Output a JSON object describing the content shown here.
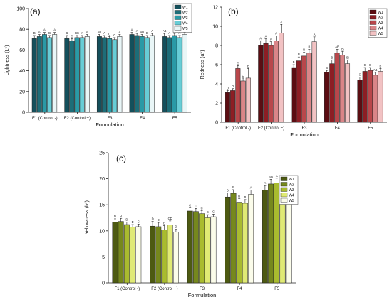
{
  "chart_data": [
    {
      "type": "bar",
      "panel_label": "(a)",
      "xlabel": "Formulation",
      "ylabel": "Lightness (L*)",
      "ylim": [
        0,
        100
      ],
      "yticks": [
        0,
        20,
        40,
        60,
        80,
        100
      ],
      "categories": [
        "F1 (Control -)",
        "F2 (Control +)",
        "F3",
        "F4",
        "F5"
      ],
      "legend_position": "top-right",
      "series": [
        {
          "name": "W1",
          "color": "#14505c",
          "values": [
            71,
            71,
            73,
            75,
            73
          ],
          "errors": [
            3,
            3,
            2,
            2,
            3
          ],
          "letters": [
            "B",
            "B",
            "AB",
            "A",
            "AB"
          ]
        },
        {
          "name": "W2",
          "color": "#1d6d78",
          "values": [
            73,
            69,
            72,
            74,
            72
          ],
          "errors": [
            2,
            2,
            2,
            2,
            2
          ],
          "letters": [
            "A",
            "C",
            "A",
            "A",
            "A"
          ]
        },
        {
          "name": "W3",
          "color": "#2a9aa6",
          "values": [
            75,
            72,
            71,
            73,
            74
          ],
          "errors": [
            2,
            2,
            2,
            2,
            2
          ],
          "letters": [
            "A",
            "BC",
            "C",
            "AB",
            "A"
          ]
        },
        {
          "name": "W4",
          "color": "#67cdd6",
          "values": [
            72,
            72,
            70,
            72,
            72
          ],
          "errors": [
            2,
            2,
            2,
            2,
            2
          ],
          "letters": [
            "B",
            "A",
            "C",
            "B",
            "A"
          ]
        },
        {
          "name": "W5",
          "color": "#e9f6f7",
          "values": [
            75,
            73,
            73,
            74,
            75
          ],
          "errors": [
            2,
            2,
            2,
            2,
            2
          ],
          "letters": [
            "A",
            "A",
            "A",
            "A",
            "A"
          ]
        }
      ]
    },
    {
      "type": "bar",
      "panel_label": "(b)",
      "xlabel": "Formulation",
      "ylabel": "Redness (a*)",
      "ylim": [
        0,
        12
      ],
      "yticks": [
        0,
        2,
        4,
        6,
        8,
        10,
        12
      ],
      "categories": [
        "F1 (Control -)",
        "F2 (Control +)",
        "F3",
        "F4",
        "F5"
      ],
      "legend_position": "top-right",
      "series": [
        {
          "name": "W1",
          "color": "#5b0d12",
          "values": [
            3.1,
            8.0,
            5.7,
            5.2,
            4.4
          ],
          "errors": [
            0.2,
            0.5,
            0.3,
            0.2,
            0.3
          ],
          "letters": [
            "D",
            "A",
            "B",
            "B",
            "C"
          ]
        },
        {
          "name": "W2",
          "color": "#8d1e24",
          "values": [
            3.3,
            8.2,
            6.4,
            6.1,
            5.3
          ],
          "errors": [
            0.2,
            0.5,
            0.4,
            0.4,
            0.4
          ],
          "letters": [
            "D",
            "A",
            "B",
            "B",
            "C"
          ]
        },
        {
          "name": "W3",
          "color": "#b9474b",
          "values": [
            5.6,
            8.0,
            6.9,
            7.2,
            5.4
          ],
          "errors": [
            0.3,
            0.4,
            0.4,
            0.4,
            0.3
          ],
          "letters": [
            "C",
            "A",
            "B",
            "AB",
            "C"
          ]
        },
        {
          "name": "W4",
          "color": "#da8588",
          "values": [
            4.3,
            8.5,
            7.2,
            7.0,
            4.9
          ],
          "errors": [
            0.3,
            0.5,
            0.4,
            0.4,
            0.3
          ],
          "letters": [
            "C",
            "A",
            "B",
            "A",
            "AB"
          ]
        },
        {
          "name": "W5",
          "color": "#f2c2c3",
          "values": [
            4.6,
            9.3,
            8.4,
            6.1,
            5.3
          ],
          "errors": [
            1.0,
            0.9,
            0.5,
            0.4,
            0.3
          ],
          "letters": [
            "B",
            "A",
            "A",
            "B",
            "B"
          ]
        }
      ]
    },
    {
      "type": "bar",
      "panel_label": "(c)",
      "xlabel": "Formulation",
      "ylabel": "Yellowness (b*)",
      "ylim": [
        0,
        25
      ],
      "yticks": [
        0,
        5,
        10,
        15,
        20,
        25
      ],
      "categories": [
        "F1 (Control -)",
        "F2 (Control +)",
        "F3",
        "F4",
        "F5"
      ],
      "legend_position": "top-right",
      "series": [
        {
          "name": "W1",
          "color": "#4d5a12",
          "values": [
            11.7,
            10.9,
            13.8,
            16.5,
            17.8
          ],
          "errors": [
            0.6,
            0.9,
            0.6,
            0.8,
            0.9
          ],
          "letters": [
            "D",
            "D",
            "C",
            "B",
            "A"
          ]
        },
        {
          "name": "W2",
          "color": "#76881d",
          "values": [
            11.8,
            10.8,
            13.7,
            17.2,
            19.0
          ],
          "errors": [
            0.6,
            0.8,
            0.6,
            0.7,
            0.9
          ],
          "letters": [
            "D",
            "D",
            "C",
            "B",
            "AB"
          ]
        },
        {
          "name": "W3",
          "color": "#a9bb2f",
          "values": [
            11.2,
            10.2,
            13.3,
            15.5,
            19.2
          ],
          "errors": [
            0.5,
            0.8,
            0.6,
            0.7,
            0.9
          ],
          "letters": [
            "D",
            "E",
            "C",
            "B",
            "A"
          ]
        },
        {
          "name": "W4",
          "color": "#e0ea74",
          "values": [
            10.7,
            11.1,
            12.5,
            15.3,
            18.7
          ],
          "errors": [
            0.5,
            0.8,
            0.6,
            0.7,
            0.9
          ],
          "letters": [
            "D",
            "CD",
            "C",
            "B",
            "A"
          ]
        },
        {
          "name": "W5",
          "color": "#fbfcea",
          "values": [
            10.8,
            9.8,
            12.7,
            17.0,
            17.7
          ],
          "errors": [
            0.5,
            0.5,
            0.5,
            0.8,
            0.8
          ],
          "letters": [
            "C",
            "D",
            "C",
            "A",
            "B"
          ]
        }
      ]
    }
  ]
}
